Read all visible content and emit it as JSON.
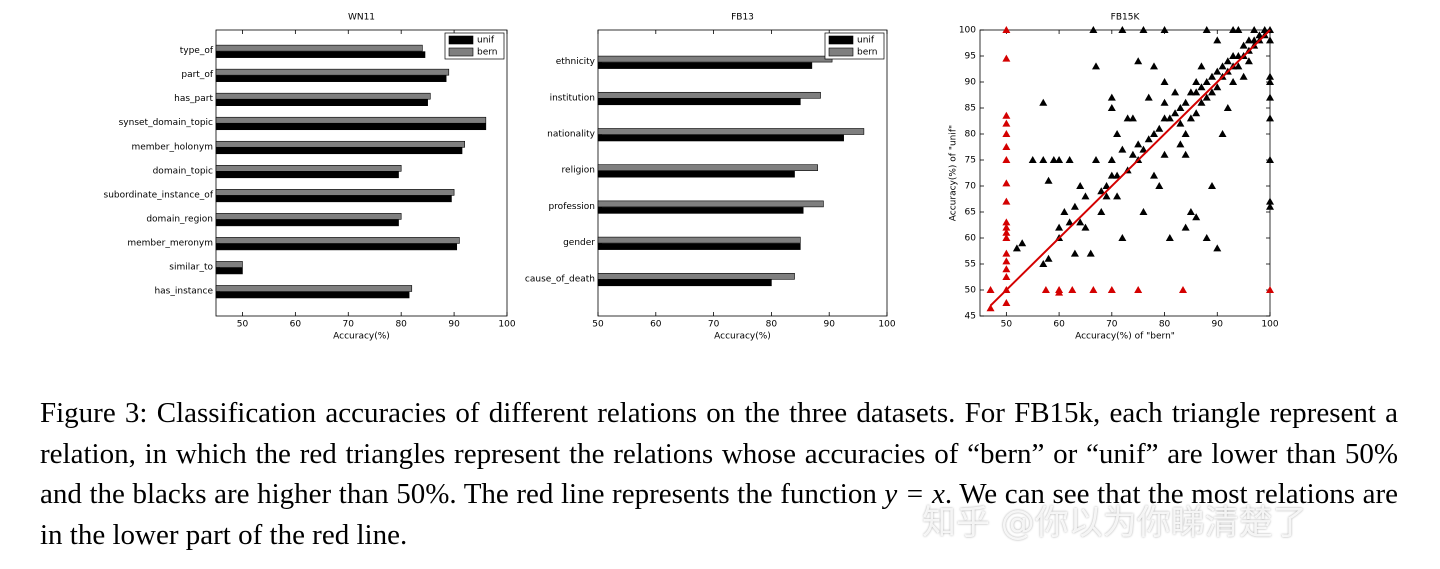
{
  "chart_data": [
    {
      "type": "hbar",
      "title": "WN11",
      "x_label": "Accuracy(%)",
      "categories": [
        "type_of",
        "part_of",
        "has_part",
        "synset_domain_topic",
        "member_holonym",
        "domain_topic",
        "subordinate_instance_of",
        "domain_region",
        "member_meronym",
        "similar_to",
        "has_instance"
      ],
      "series": [
        {
          "name": "unif",
          "color": "#000000",
          "values": [
            84.5,
            88.5,
            85,
            96,
            91.5,
            79.5,
            89.5,
            79.5,
            90.5,
            50,
            81.5
          ]
        },
        {
          "name": "bern",
          "color": "#7f7f7f",
          "values": [
            84,
            89,
            85.5,
            96,
            92,
            80,
            90,
            80,
            91,
            50,
            82
          ]
        }
      ],
      "xlim": [
        45,
        100
      ],
      "xticks": [
        50,
        60,
        70,
        80,
        90,
        100
      ],
      "legend": "upper right"
    },
    {
      "type": "hbar",
      "title": "FB13",
      "x_label": "Accuracy(%)",
      "categories": [
        "ethnicity",
        "institution",
        "nationality",
        "religion",
        "profession",
        "gender",
        "cause_of_death"
      ],
      "series": [
        {
          "name": "unif",
          "color": "#000000",
          "values": [
            87,
            85,
            92.5,
            84,
            85.5,
            85,
            80
          ]
        },
        {
          "name": "bern",
          "color": "#7f7f7f",
          "values": [
            90.5,
            88.5,
            96,
            88,
            89,
            85,
            84
          ]
        }
      ],
      "xlim": [
        50,
        100
      ],
      "xticks": [
        50,
        60,
        70,
        80,
        90,
        100
      ],
      "legend": "upper right"
    },
    {
      "type": "scatter",
      "title": "FB15K",
      "x_label": "Accuracy(%) of \"bern\"",
      "y_label": "Accuracy(%) of \"unif\"",
      "series": [
        {
          "color": "#000000",
          "x": [
            57,
            57,
            58,
            57,
            58,
            59,
            60,
            60,
            61,
            62,
            62,
            63,
            64,
            65,
            65,
            66,
            66.5,
            67,
            67,
            68,
            68,
            69,
            70,
            70,
            70,
            70,
            71,
            71,
            72,
            72,
            73,
            73,
            74,
            75,
            75,
            75,
            76,
            76,
            77,
            77,
            78,
            78,
            79,
            80,
            80,
            80,
            80,
            81,
            81,
            82,
            83,
            83,
            84,
            84,
            85,
            85,
            85,
            86,
            86,
            86,
            87,
            87,
            87,
            88,
            88,
            88,
            89,
            89,
            89,
            90,
            90,
            90,
            91,
            91,
            91,
            92,
            92,
            92,
            93,
            93,
            93,
            94,
            94,
            94,
            95,
            95,
            95,
            96,
            96,
            96,
            97,
            97,
            98,
            98,
            99,
            99,
            100,
            100,
            100,
            100,
            100,
            100,
            100,
            100,
            100,
            53,
            52,
            55,
            60,
            63,
            69,
            74,
            79,
            82,
            84,
            86,
            88,
            90,
            97,
            93,
            72,
            76,
            80,
            78,
            83,
            84,
            71,
            64
          ],
          "values": [
            86,
            75,
            71,
            55,
            56,
            75,
            60,
            62,
            65,
            75,
            63,
            66,
            63,
            68,
            62,
            57,
            100,
            93,
            75,
            65,
            69,
            70,
            72,
            75,
            85,
            87,
            72,
            80,
            77,
            60,
            73,
            83,
            83,
            94,
            75,
            78,
            77,
            65,
            79,
            87,
            80,
            72,
            81,
            83,
            86,
            90,
            76,
            83,
            60,
            84,
            85,
            78,
            86,
            80,
            88,
            83,
            65,
            88,
            90,
            84,
            89,
            86,
            93,
            90,
            87,
            100,
            91,
            88,
            70,
            92,
            89,
            98,
            93,
            91,
            80,
            94,
            92,
            85,
            95,
            93,
            90,
            95,
            93,
            100,
            97,
            95,
            91,
            98,
            96,
            94,
            98,
            97,
            99,
            98,
            100,
            99,
            100,
            98,
            91,
            90,
            87,
            83,
            75,
            67,
            66,
            59,
            58,
            75,
            75,
            57,
            68,
            76,
            70,
            88,
            62,
            64,
            60,
            58,
            100,
            100,
            100,
            100,
            100,
            93,
            82,
            76,
            68,
            70
          ]
        },
        {
          "color": "#d40000",
          "x": [
            50,
            50,
            50,
            50,
            50,
            50,
            50,
            50,
            50,
            50,
            50,
            50,
            50,
            50,
            50,
            50,
            50,
            50,
            50,
            47,
            47,
            57.5,
            60,
            62.5,
            60,
            66.5,
            70,
            75,
            83.5,
            100
          ],
          "values": [
            100,
            94.5,
            83.5,
            82,
            80,
            77.5,
            75,
            70.5,
            67,
            63,
            62,
            61,
            60,
            57,
            55.5,
            54,
            52.5,
            50,
            47.5,
            50,
            46.5,
            50,
            50,
            50,
            49.5,
            50,
            50,
            50,
            50,
            50
          ]
        }
      ],
      "reference_line": {
        "color": "#d40000",
        "x": [
          47,
          100
        ],
        "y": [
          47,
          100
        ]
      },
      "xlim": [
        45,
        100
      ],
      "ylim": [
        45,
        100
      ],
      "xticks": [
        50,
        60,
        70,
        80,
        90,
        100
      ],
      "yticks": [
        45,
        50,
        55,
        60,
        65,
        70,
        75,
        80,
        85,
        90,
        95,
        100
      ]
    }
  ],
  "caption": {
    "before": "Figure 3: Classification accuracies of different relations on the three datasets. For FB15k, each triangle represent a relation, in which the red triangles represent the relations whose accuracies of “bern” or “unif” are lower than 50% and the blacks are higher than 50%. The red line represents the function",
    "math": "y = x",
    "after": ". We can see that the most relations are in the lower part of the red line."
  },
  "watermark": "知乎 @你以为你睇清楚了"
}
